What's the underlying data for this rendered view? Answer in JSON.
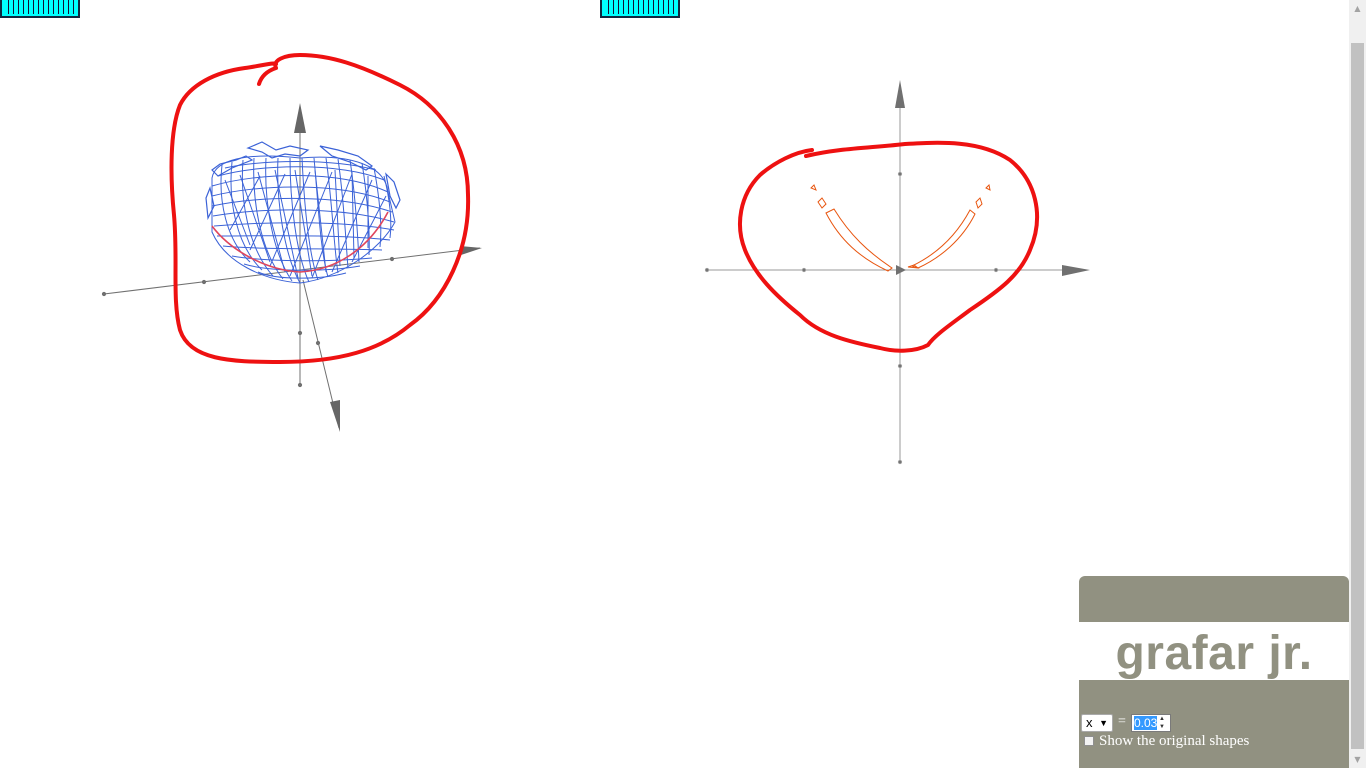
{
  "stats_widgets": [
    {
      "name": "left-stats"
    },
    {
      "name": "right-stats"
    }
  ],
  "colors": {
    "surface": "#3b62d7",
    "surface_highlight": "#e0455d",
    "section_curve": "#e8550f",
    "annotation": "#ee1111",
    "axis": "#606060",
    "panel": "#919181",
    "stats": "#00ffff"
  },
  "icons": {
    "scroll_up": "arrow-up-icon",
    "scroll_down": "arrow-down-icon",
    "select_caret": "triangle-down-icon"
  },
  "panel": {
    "logo": "grafar jr.",
    "axis_options": [
      "x"
    ],
    "axis_selected": "x",
    "equals": "=",
    "value": "0.03",
    "show_original_label": "Show the original shapes",
    "show_original_checked": false
  }
}
